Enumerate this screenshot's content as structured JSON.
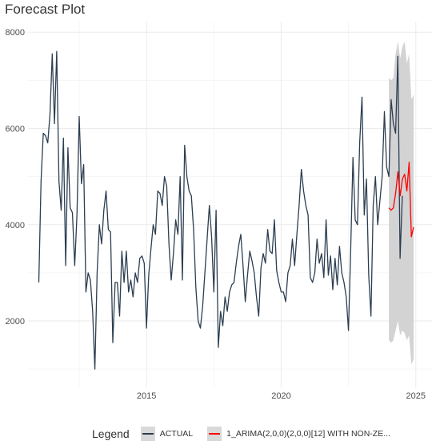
{
  "title": "Forecast Plot",
  "legend": {
    "title": "Legend",
    "items": [
      {
        "label": "ACTUAL",
        "color": "#2c3e50"
      },
      {
        "label": "1_ARIMA(2,0,0)(2,0,0)[12] WITH NON-ZE...",
        "color": "#ff0000"
      }
    ]
  },
  "colors": {
    "actual": "#2c3e50",
    "forecast": "#ff0000",
    "band": "#d3d3d3",
    "grid": "#ebebeb"
  },
  "chart_data": {
    "type": "line",
    "title": "Forecast Plot",
    "xlabel": "",
    "ylabel": "",
    "xlim": [
      2010.6,
      2025.6
    ],
    "ylim": [
      620,
      8220
    ],
    "x_ticks": [
      2015,
      2020,
      2025
    ],
    "x_tick_labels": [
      "2015",
      "2020",
      "2025"
    ],
    "y_ticks": [
      2000,
      4000,
      6000,
      8000
    ],
    "y_tick_labels": [
      "2000",
      "4000",
      "6000",
      "8000"
    ],
    "grid": true,
    "legend_position": "bottom",
    "series": [
      {
        "name": "ACTUAL",
        "start": 2011.0,
        "step": 0.08333,
        "values": [
          2800,
          4900,
          5900,
          5850,
          5700,
          6300,
          7550,
          6100,
          7600,
          4900,
          4300,
          5800,
          3150,
          5600,
          4350,
          4250,
          3150,
          4200,
          6250,
          4850,
          5250,
          2600,
          3000,
          2850,
          2200,
          1000,
          3000,
          4000,
          3600,
          4300,
          4700,
          3900,
          3850,
          1550,
          2800,
          2800,
          2100,
          3450,
          2800,
          3450,
          2600,
          2850,
          2500,
          3000,
          2800,
          3300,
          3350,
          3200,
          1850,
          2950,
          3500,
          4000,
          3800,
          4700,
          4650,
          4400,
          5000,
          4800,
          3600,
          2850,
          3400,
          4100,
          3800,
          5000,
          2850,
          5650,
          5000,
          4700,
          4600,
          3900,
          2700,
          2000,
          1850,
          2300,
          3000,
          3700,
          4400,
          3750,
          2600,
          4300,
          1450,
          2200,
          1900,
          2500,
          2200,
          2600,
          2750,
          2800,
          3200,
          3550,
          3800,
          3150,
          2400,
          2950,
          3450,
          3250,
          3000,
          2500,
          2100,
          3100,
          3400,
          3200,
          3900,
          3450,
          3400,
          4100,
          3050,
          2800,
          2600,
          2600,
          2400,
          3000,
          3150,
          3700,
          3150,
          3800,
          4400,
          5150,
          4700,
          4400,
          4200,
          2900,
          2800,
          3000,
          3700,
          3200,
          3400,
          2900,
          4100,
          2950,
          3350,
          2650,
          3300,
          2750,
          3550,
          3000,
          2800,
          2500,
          1800,
          3500,
          5400,
          4100,
          4000,
          5700,
          6650,
          4200,
          4950,
          2950,
          2100,
          4400,
          5000,
          4000,
          4500,
          5000,
          6350,
          5200,
          5000,
          6600,
          6100,
          5900,
          7500,
          3300,
          4600
        ]
      },
      {
        "name": "1_ARIMA(2,0,0)(2,0,0)[12] WITH NON-ZE...",
        "start": 2024.0,
        "step": 0.08333,
        "values": [
          4350,
          4300,
          4350,
          4650,
          5100,
          4600,
          4950,
          5050,
          4700,
          5300,
          3750,
          3950
        ],
        "lower": [
          1600,
          1550,
          1600,
          1800,
          2000,
          1700,
          1800,
          1750,
          1600,
          1700,
          1100,
          1200
        ],
        "upper": [
          7050,
          7000,
          7050,
          7550,
          7800,
          7450,
          7700,
          7800,
          7350,
          7550,
          6600,
          6700
        ]
      }
    ]
  }
}
